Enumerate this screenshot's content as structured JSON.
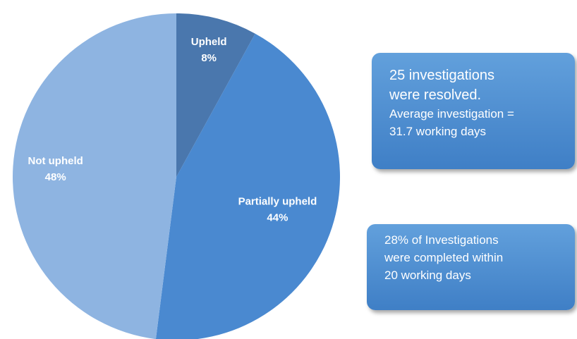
{
  "chart_data": {
    "type": "pie",
    "categories": [
      "Upheld",
      "Partially upheld",
      "Not upheld"
    ],
    "values": [
      8,
      44,
      48
    ],
    "value_labels": [
      "8%",
      "44%",
      "48%"
    ],
    "colors": [
      "#4a77ad",
      "#4a89d0",
      "#8eb4e1"
    ]
  },
  "annotations": [
    {
      "lines": [
        "25 investigations",
        "were resolved.",
        "Average investigation =",
        "31.7 working days"
      ]
    },
    {
      "lines": [
        "28% of Investigations",
        "were completed within",
        "20 working days"
      ]
    }
  ]
}
